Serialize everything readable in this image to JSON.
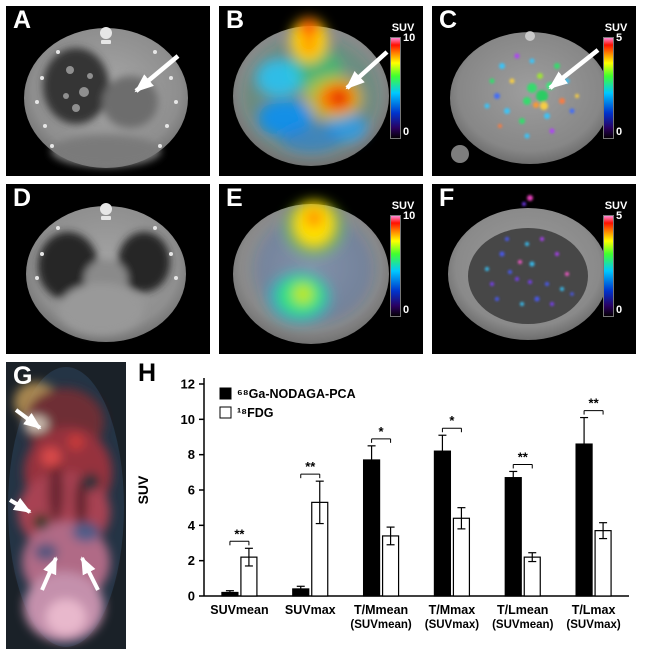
{
  "panels": {
    "A": {
      "label": "A"
    },
    "B": {
      "label": "B",
      "colorbar": {
        "title": "SUV",
        "max": "10",
        "min": "0"
      }
    },
    "C": {
      "label": "C",
      "colorbar": {
        "title": "SUV",
        "max": "5",
        "min": "0"
      }
    },
    "D": {
      "label": "D"
    },
    "E": {
      "label": "E",
      "colorbar": {
        "title": "SUV",
        "max": "10",
        "min": "0"
      }
    },
    "F": {
      "label": "F",
      "colorbar": {
        "title": "SUV",
        "max": "5",
        "min": "0"
      }
    },
    "G": {
      "label": "G"
    },
    "H": {
      "label": "H"
    }
  },
  "colors": {
    "pet_scale_bottom_to_top": [
      "#050005",
      "#2a0060",
      "#0033cc",
      "#00c8ff",
      "#40ff30",
      "#ffff00",
      "#ff8000",
      "#ff1000",
      "#ff8ad8"
    ],
    "bar_black": "#000000",
    "bar_white": "#ffffff"
  },
  "chart_data": {
    "type": "bar",
    "title": "",
    "ylabel": "SUV",
    "ylim": [
      0,
      12
    ],
    "yticks": [
      0,
      2,
      4,
      6,
      8,
      10,
      12
    ],
    "categories": [
      "SUVmean",
      "SUVmax",
      "T/Mmean",
      "T/Mmax",
      "T/Lmean",
      "T/Lmax"
    ],
    "category_sublabels": [
      "",
      "",
      "(SUVmean)",
      "(SUVmax)",
      "(SUVmean)",
      "(SUVmax)"
    ],
    "series": [
      {
        "name": "⁶⁸Ga-NODAGA-PCA",
        "fill": "#000000",
        "values": [
          0.2,
          0.4,
          7.7,
          8.2,
          6.7,
          8.6
        ],
        "errors": [
          0.1,
          0.15,
          0.8,
          0.9,
          0.35,
          1.5
        ]
      },
      {
        "name": "¹⁸FDG",
        "fill": "#ffffff",
        "values": [
          2.2,
          5.3,
          3.4,
          4.4,
          2.2,
          3.7
        ],
        "errors": [
          0.5,
          1.2,
          0.5,
          0.6,
          0.25,
          0.45
        ]
      }
    ],
    "significance": [
      "**",
      "**",
      "*",
      "*",
      "**",
      "**"
    ],
    "legend_position": "top-left",
    "grid": false
  }
}
